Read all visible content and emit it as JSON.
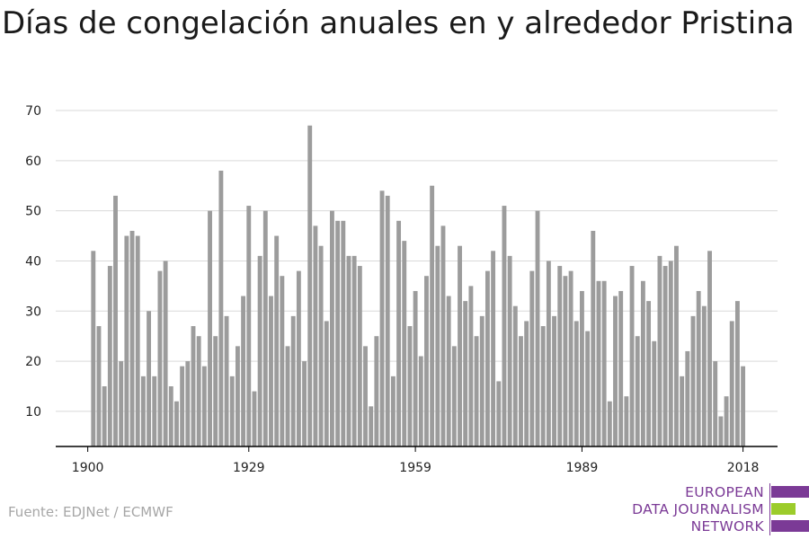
{
  "title": "Días de congelación anuales en y alrededor Pristina",
  "source": "Fuente: EDJNet / ECMWF",
  "logo": {
    "lines": [
      "EUROPEAN",
      "DATA JOURNALISM",
      "NETWORK"
    ],
    "colors": {
      "purple": "#7b3a96",
      "green": "#9ccc2b"
    }
  },
  "colors": {
    "bar": "#9c9c9c",
    "grid": "#d9d9d9",
    "axis": "#000000"
  },
  "chart_data": {
    "type": "bar",
    "title": "Días de congelación anuales en y alrededor Pristina",
    "xlabel": "",
    "ylabel": "",
    "ylim": [
      3,
      70
    ],
    "yticks": [
      10,
      20,
      30,
      40,
      50,
      60,
      70
    ],
    "xticks": [
      1900,
      1929,
      1959,
      1989,
      2018
    ],
    "grid": true,
    "x": [
      1901,
      1902,
      1903,
      1904,
      1905,
      1906,
      1907,
      1908,
      1909,
      1910,
      1911,
      1912,
      1913,
      1914,
      1915,
      1916,
      1917,
      1918,
      1919,
      1920,
      1921,
      1922,
      1923,
      1924,
      1925,
      1926,
      1927,
      1928,
      1929,
      1930,
      1931,
      1932,
      1933,
      1934,
      1935,
      1936,
      1937,
      1938,
      1939,
      1940,
      1941,
      1942,
      1943,
      1944,
      1945,
      1946,
      1947,
      1948,
      1949,
      1950,
      1951,
      1952,
      1953,
      1954,
      1955,
      1956,
      1957,
      1958,
      1959,
      1960,
      1961,
      1962,
      1963,
      1964,
      1965,
      1966,
      1967,
      1968,
      1969,
      1970,
      1971,
      1972,
      1973,
      1974,
      1975,
      1976,
      1977,
      1978,
      1979,
      1980,
      1981,
      1982,
      1983,
      1984,
      1985,
      1986,
      1987,
      1988,
      1989,
      1990,
      1991,
      1992,
      1993,
      1994,
      1995,
      1996,
      1997,
      1998,
      1999,
      2000,
      2001,
      2002,
      2003,
      2004,
      2005,
      2006,
      2007,
      2008,
      2009,
      2010,
      2011,
      2012,
      2013,
      2014,
      2015,
      2016,
      2017,
      2018
    ],
    "values": [
      42,
      27,
      15,
      39,
      53,
      20,
      45,
      46,
      45,
      17,
      30,
      17,
      38,
      40,
      15,
      12,
      19,
      20,
      27,
      25,
      19,
      50,
      25,
      58,
      29,
      17,
      23,
      33,
      51,
      14,
      41,
      50,
      33,
      45,
      37,
      23,
      29,
      38,
      20,
      67,
      47,
      43,
      28,
      50,
      48,
      48,
      41,
      41,
      39,
      23,
      11,
      25,
      54,
      53,
      17,
      48,
      44,
      27,
      34,
      21,
      37,
      55,
      43,
      47,
      33,
      23,
      43,
      32,
      35,
      25,
      29,
      38,
      42,
      16,
      51,
      41,
      31,
      25,
      28,
      38,
      50,
      27,
      40,
      29,
      39,
      37,
      38,
      28,
      34,
      26,
      46,
      36,
      36,
      12,
      33,
      34,
      13,
      39,
      25,
      36,
      32,
      24,
      41,
      39,
      40,
      43,
      17,
      22,
      29,
      34,
      31,
      42,
      20,
      9,
      13,
      28,
      32,
      19
    ]
  }
}
